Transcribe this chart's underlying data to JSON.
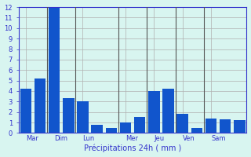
{
  "values": [
    4.2,
    5.2,
    12.0,
    3.3,
    3.0,
    0.8,
    0.5,
    1.0,
    1.5,
    4.0,
    4.2,
    1.8,
    0.5,
    1.4,
    1.3,
    1.2
  ],
  "xlabel": "Précipitations 24h ( mm )",
  "ylim": [
    0,
    12
  ],
  "yticks": [
    0,
    1,
    2,
    3,
    4,
    5,
    6,
    7,
    8,
    9,
    10,
    11,
    12
  ],
  "bar_color": "#1155cc",
  "background_color": "#d8f5f0",
  "grid_color": "#b0b0b0",
  "axis_color": "#3333cc",
  "tick_label_color": "#3333cc",
  "xlabel_color": "#3333cc",
  "bar_width": 0.8,
  "day_labels": [
    "Mar",
    "Dim",
    "Lun",
    "Mer",
    "Jeu",
    "Ven",
    "Sam"
  ],
  "day_start_positions": [
    0,
    2,
    4,
    7,
    9,
    11,
    13
  ],
  "separator_positions": [
    1.5,
    3.5,
    6.5,
    8.5,
    10.5,
    12.5
  ],
  "n_bars": 16
}
